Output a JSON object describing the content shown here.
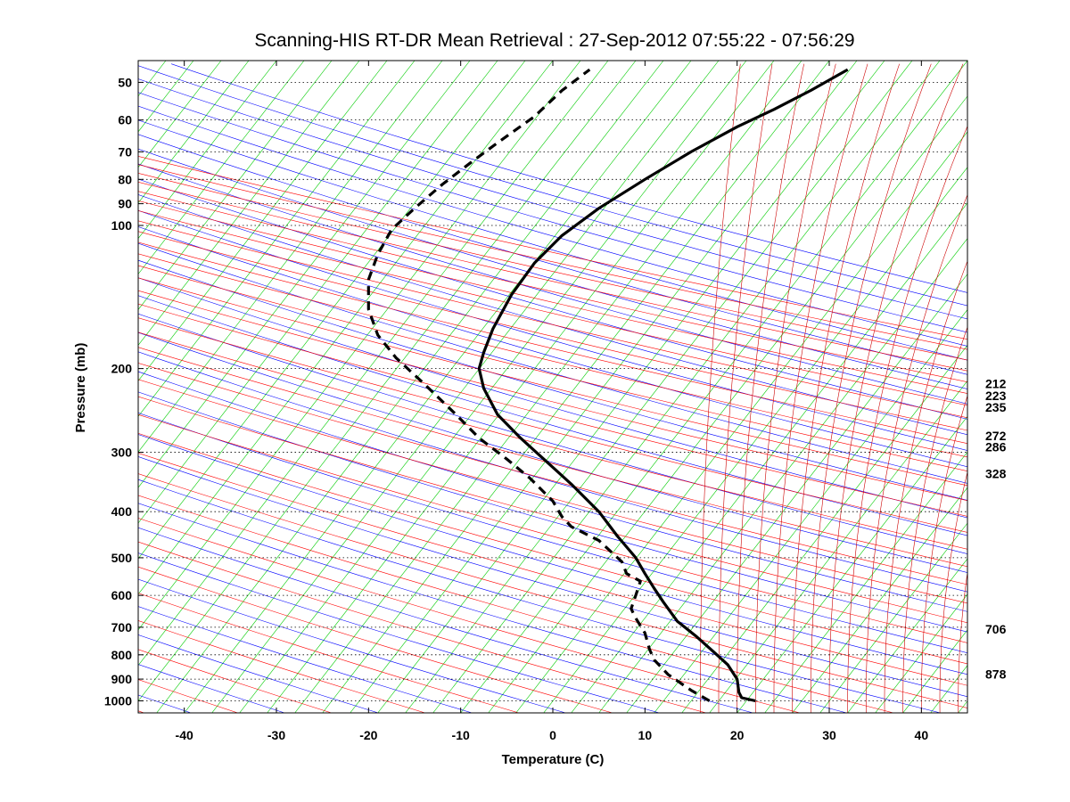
{
  "chart_data": {
    "type": "line",
    "title": "Scanning-HIS RT-DR Mean Retrieval : 27-Sep-2012 07:55:22 - 07:56:29",
    "xlabel": "Temperature (C)",
    "ylabel": "Pressure (mb)",
    "xlim": [
      -45,
      45
    ],
    "ylim": [
      1060,
      45
    ],
    "y_scale": "log",
    "y_reversed": true,
    "grid": "horizontal dotted at pressure ticks",
    "x_ticks": [
      -40,
      -30,
      -20,
      -10,
      0,
      10,
      20,
      30,
      40
    ],
    "y_ticks": [
      50,
      60,
      70,
      80,
      90,
      100,
      200,
      300,
      400,
      500,
      600,
      700,
      800,
      900,
      1000
    ],
    "right_labels": [
      {
        "text": "212",
        "p": 215
      },
      {
        "text": "223",
        "p": 228
      },
      {
        "text": "235",
        "p": 241
      },
      {
        "text": "272",
        "p": 277
      },
      {
        "text": "286",
        "p": 292
      },
      {
        "text": "328",
        "p": 333
      },
      {
        "text": "706",
        "p": 706
      },
      {
        "text": "878",
        "p": 878
      }
    ],
    "background_lines": {
      "dry_adiabat_color": "#0000ff",
      "moist_adiabat_color": "#ff0000",
      "mixing_ratio_color": "#00cc00",
      "isotherm_color": "#cc0000",
      "gridline_color": "#000000"
    },
    "series": [
      {
        "style": "solid",
        "color": "#000000",
        "points": [
          [
            22,
            1000
          ],
          [
            20.5,
            985
          ],
          [
            20.2,
            960
          ],
          [
            20,
            900
          ],
          [
            19,
            840
          ],
          [
            17.5,
            790
          ],
          [
            15.5,
            730
          ],
          [
            13.5,
            680
          ],
          [
            12,
            620
          ],
          [
            11,
            580
          ],
          [
            10,
            540
          ],
          [
            9,
            500
          ],
          [
            7,
            450
          ],
          [
            5,
            400
          ],
          [
            2,
            350
          ],
          [
            -1,
            310
          ],
          [
            -3.5,
            280
          ],
          [
            -6,
            250
          ],
          [
            -7.5,
            220
          ],
          [
            -8,
            200
          ],
          [
            -7.5,
            185
          ],
          [
            -6.5,
            165
          ],
          [
            -4.5,
            140
          ],
          [
            -2,
            120
          ],
          [
            1,
            105
          ],
          [
            5,
            92
          ],
          [
            10,
            80
          ],
          [
            15,
            70
          ],
          [
            20,
            62
          ],
          [
            24,
            57
          ],
          [
            28,
            52
          ],
          [
            32,
            47
          ]
        ]
      },
      {
        "style": "dashed",
        "color": "#000000",
        "points": [
          [
            17,
            1000
          ],
          [
            15,
            950
          ],
          [
            12.5,
            880
          ],
          [
            11,
            820
          ],
          [
            10.5,
            780
          ],
          [
            10,
            720
          ],
          [
            9,
            670
          ],
          [
            8.5,
            640
          ],
          [
            9,
            600
          ],
          [
            9.5,
            560
          ],
          [
            8,
            540
          ],
          [
            7.5,
            510
          ],
          [
            5,
            460
          ],
          [
            2,
            430
          ],
          [
            1,
            410
          ],
          [
            0,
            380
          ],
          [
            -2.5,
            340
          ],
          [
            -5,
            310
          ],
          [
            -8,
            280
          ],
          [
            -10.5,
            250
          ],
          [
            -14,
            215
          ],
          [
            -17,
            190
          ],
          [
            -19,
            170
          ],
          [
            -20,
            150
          ],
          [
            -20,
            130
          ],
          [
            -19,
            115
          ],
          [
            -17.5,
            102
          ],
          [
            -15,
            92
          ],
          [
            -12,
            82
          ],
          [
            -9,
            74
          ],
          [
            -6,
            67
          ],
          [
            -2,
            59
          ],
          [
            1,
            52
          ],
          [
            4,
            47
          ]
        ]
      }
    ]
  }
}
